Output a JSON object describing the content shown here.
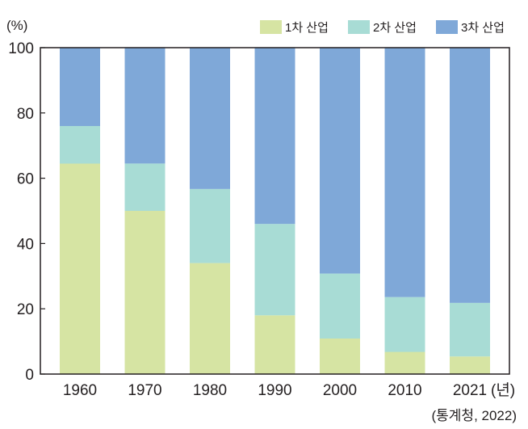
{
  "chart_data": {
    "type": "bar",
    "stacked": true,
    "title": "",
    "ylabel": "(%)",
    "xlabel": "",
    "x_unit": "(년)",
    "source": "(통계청, 2022)",
    "ylim": [
      0,
      100
    ],
    "yticks": [
      0,
      20,
      40,
      60,
      80,
      100
    ],
    "categories": [
      "1960",
      "1970",
      "1980",
      "1990",
      "2000",
      "2010",
      "2021"
    ],
    "series": [
      {
        "name": "1차 산업",
        "color": "#d6e4a3",
        "values": [
          64.5,
          50.0,
          34.0,
          18.0,
          10.9,
          6.8,
          5.4
        ]
      },
      {
        "name": "2차 산업",
        "color": "#a8dcd5",
        "values": [
          11.5,
          14.5,
          22.7,
          28.0,
          19.9,
          16.8,
          16.4
        ]
      },
      {
        "name": "3차 산업",
        "color": "#7fa8d8",
        "values": [
          24.0,
          35.5,
          43.3,
          54.0,
          69.2,
          76.4,
          78.2
        ]
      }
    ],
    "legend_position": "top-right",
    "grid": false
  }
}
